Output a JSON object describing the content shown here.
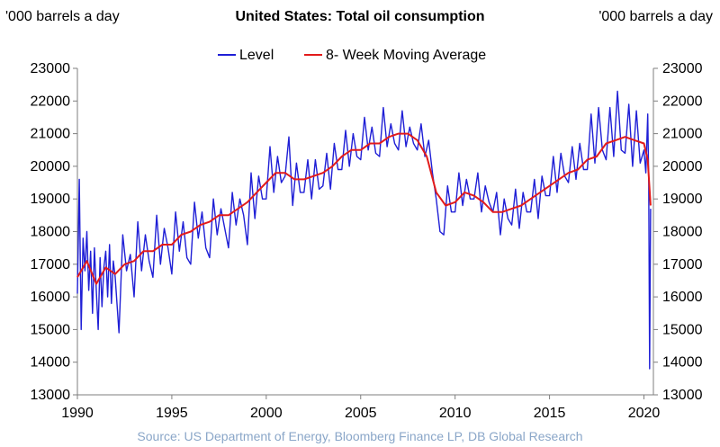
{
  "header": {
    "title": "United States: Total oil consumption",
    "unit_left": "'000 barrels a day",
    "unit_right": "'000 barrels a day"
  },
  "footer": {
    "source": "Source:  US Department of Energy, Bloomberg Finance LP, DB Global Research"
  },
  "colors": {
    "level": "#1f1fd6",
    "moving_average": "#e21b1b",
    "axis": "#7f7f7f"
  },
  "chart_data": {
    "type": "line",
    "title": "United States: Total oil consumption",
    "ylabel": "'000 barrels a day",
    "xlim": [
      1990,
      2020.5
    ],
    "ylim": [
      13000,
      23000
    ],
    "x_ticks": [
      "1990",
      "1995",
      "2000",
      "2005",
      "2010",
      "2015",
      "2020"
    ],
    "y_ticks": [
      "13000",
      "14000",
      "15000",
      "16000",
      "17000",
      "18000",
      "19000",
      "20000",
      "21000",
      "22000",
      "23000"
    ],
    "legend": "top-center",
    "grid": false,
    "series": [
      {
        "name": "Level",
        "color": "#1f1fd6",
        "x": [
          1990.0,
          1990.1,
          1990.2,
          1990.3,
          1990.4,
          1990.5,
          1990.6,
          1990.7,
          1990.8,
          1990.9,
          1991.0,
          1991.1,
          1991.2,
          1991.3,
          1991.4,
          1991.5,
          1991.6,
          1991.7,
          1991.8,
          1991.9,
          1992.0,
          1992.2,
          1992.4,
          1992.6,
          1992.8,
          1993.0,
          1993.2,
          1993.4,
          1993.6,
          1993.8,
          1994.0,
          1994.2,
          1994.4,
          1994.6,
          1994.8,
          1995.0,
          1995.2,
          1995.4,
          1995.6,
          1995.8,
          1996.0,
          1996.2,
          1996.4,
          1996.6,
          1996.8,
          1997.0,
          1997.2,
          1997.4,
          1997.6,
          1997.8,
          1998.0,
          1998.2,
          1998.4,
          1998.6,
          1998.8,
          1999.0,
          1999.2,
          1999.4,
          1999.6,
          1999.8,
          2000.0,
          2000.2,
          2000.4,
          2000.6,
          2000.8,
          2001.0,
          2001.2,
          2001.4,
          2001.6,
          2001.8,
          2002.0,
          2002.2,
          2002.4,
          2002.6,
          2002.8,
          2003.0,
          2003.2,
          2003.4,
          2003.6,
          2003.8,
          2004.0,
          2004.2,
          2004.4,
          2004.6,
          2004.8,
          2005.0,
          2005.2,
          2005.4,
          2005.6,
          2005.8,
          2006.0,
          2006.2,
          2006.4,
          2006.6,
          2006.8,
          2007.0,
          2007.2,
          2007.4,
          2007.6,
          2007.8,
          2008.0,
          2008.2,
          2008.4,
          2008.6,
          2008.8,
          2009.0,
          2009.2,
          2009.4,
          2009.6,
          2009.8,
          2010.0,
          2010.2,
          2010.4,
          2010.6,
          2010.8,
          2011.0,
          2011.2,
          2011.4,
          2011.6,
          2011.8,
          2012.0,
          2012.2,
          2012.4,
          2012.6,
          2012.8,
          2013.0,
          2013.2,
          2013.4,
          2013.6,
          2013.8,
          2014.0,
          2014.2,
          2014.4,
          2014.6,
          2014.8,
          2015.0,
          2015.2,
          2015.4,
          2015.6,
          2015.8,
          2016.0,
          2016.2,
          2016.4,
          2016.6,
          2016.8,
          2017.0,
          2017.2,
          2017.4,
          2017.6,
          2017.8,
          2018.0,
          2018.2,
          2018.4,
          2018.6,
          2018.8,
          2019.0,
          2019.2,
          2019.4,
          2019.6,
          2019.8,
          2020.0,
          2020.1,
          2020.2,
          2020.25,
          2020.3,
          2020.35
        ],
        "values": [
          16100,
          19600,
          15000,
          17800,
          16800,
          18000,
          16200,
          17400,
          15500,
          17500,
          16200,
          15000,
          17200,
          15700,
          16900,
          17400,
          16000,
          17600,
          15800,
          17100,
          16600,
          14900,
          17900,
          16800,
          17300,
          16000,
          18300,
          16800,
          17900,
          17100,
          16600,
          18500,
          17000,
          18100,
          17500,
          16700,
          18600,
          17400,
          18300,
          17200,
          17000,
          18900,
          17800,
          18600,
          17500,
          17200,
          19000,
          17900,
          18700,
          18100,
          17500,
          19200,
          18200,
          19000,
          18500,
          17600,
          19800,
          18400,
          19700,
          19000,
          19000,
          20600,
          19200,
          20300,
          19500,
          19700,
          20900,
          18800,
          20100,
          19200,
          19200,
          20200,
          19000,
          20200,
          19300,
          19400,
          20400,
          19300,
          20700,
          19900,
          19900,
          21100,
          20000,
          21000,
          20300,
          20200,
          21500,
          20500,
          21200,
          20400,
          20300,
          21800,
          20600,
          21300,
          20700,
          20500,
          21700,
          20600,
          21200,
          20700,
          20500,
          21300,
          20300,
          20800,
          19800,
          19000,
          18000,
          17900,
          19400,
          18600,
          18600,
          19800,
          18800,
          19600,
          19000,
          19000,
          19800,
          18600,
          19400,
          18900,
          18600,
          19200,
          17900,
          19000,
          18400,
          18200,
          19300,
          18100,
          19200,
          18600,
          18600,
          19600,
          18400,
          19700,
          19100,
          19100,
          20300,
          19200,
          20400,
          19700,
          19500,
          20600,
          19600,
          20700,
          19900,
          19900,
          21600,
          20100,
          21800,
          20500,
          20200,
          21800,
          20300,
          22300,
          20500,
          20400,
          21900,
          20000,
          21700,
          20100,
          20500,
          19800,
          21600,
          19500,
          13800,
          18700
        ]
      },
      {
        "name": "8- Week Moving Average",
        "color": "#e21b1b",
        "x": [
          1990.0,
          1990.5,
          1991.0,
          1991.5,
          1992.0,
          1992.5,
          1993.0,
          1993.5,
          1994.0,
          1994.5,
          1995.0,
          1995.5,
          1996.0,
          1996.5,
          1997.0,
          1997.5,
          1998.0,
          1998.5,
          1999.0,
          1999.5,
          2000.0,
          2000.5,
          2001.0,
          2001.5,
          2002.0,
          2002.5,
          2003.0,
          2003.5,
          2004.0,
          2004.5,
          2005.0,
          2005.5,
          2006.0,
          2006.5,
          2007.0,
          2007.5,
          2008.0,
          2008.5,
          2009.0,
          2009.5,
          2010.0,
          2010.5,
          2011.0,
          2011.5,
          2012.0,
          2012.5,
          2013.0,
          2013.5,
          2014.0,
          2014.5,
          2015.0,
          2015.5,
          2016.0,
          2016.5,
          2017.0,
          2017.5,
          2018.0,
          2018.5,
          2019.0,
          2019.5,
          2020.0,
          2020.2,
          2020.35
        ],
        "values": [
          16600,
          17100,
          16400,
          16900,
          16700,
          17000,
          17100,
          17400,
          17400,
          17600,
          17600,
          17900,
          18000,
          18200,
          18300,
          18500,
          18500,
          18700,
          18900,
          19200,
          19500,
          19800,
          19800,
          19600,
          19600,
          19700,
          19800,
          20000,
          20300,
          20500,
          20500,
          20700,
          20700,
          20900,
          21000,
          21000,
          20800,
          20300,
          19200,
          18800,
          18900,
          19200,
          19100,
          18900,
          18600,
          18600,
          18700,
          18800,
          19000,
          19200,
          19400,
          19600,
          19800,
          19900,
          20200,
          20300,
          20700,
          20800,
          20900,
          20800,
          20700,
          20200,
          18800
        ]
      }
    ]
  }
}
